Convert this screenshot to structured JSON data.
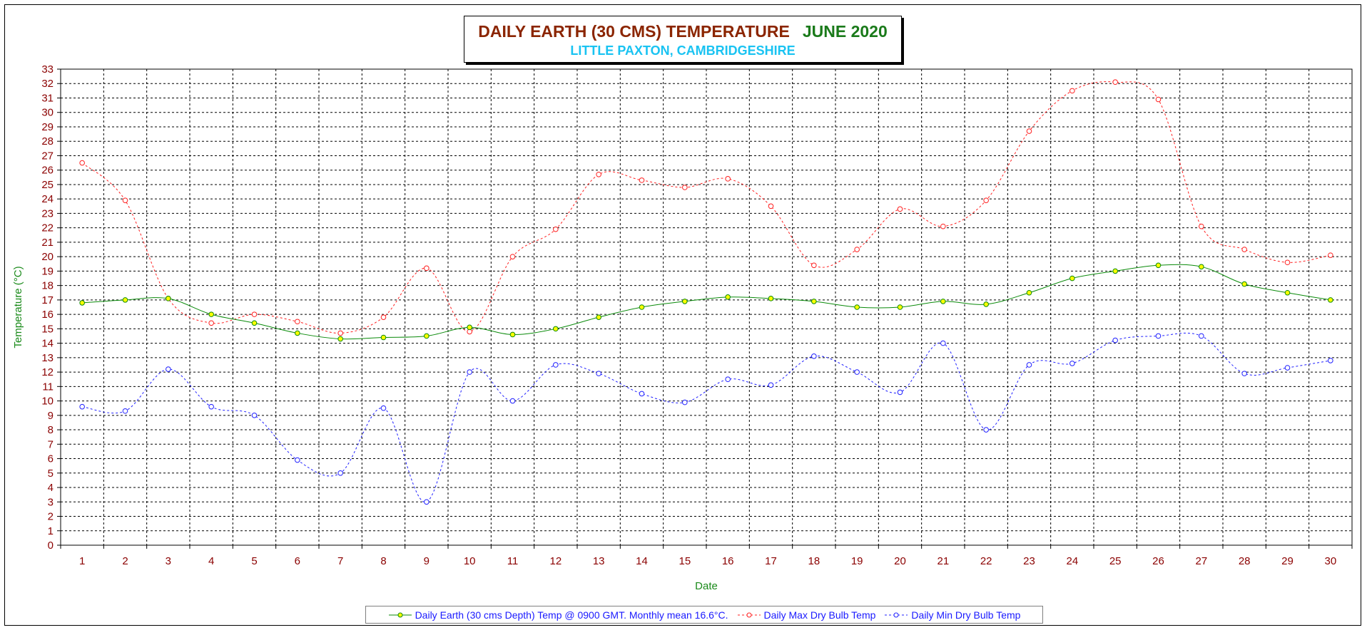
{
  "chart_data": {
    "type": "line",
    "title": "DAILY EARTH (30 CMS) TEMPERATURE",
    "title_month": "JUNE 2020",
    "subtitle": "LITTLE PAXTON, CAMBRIDGESHIRE",
    "xlabel": "Date",
    "ylabel": "Temperature (°C)",
    "x": [
      1,
      2,
      3,
      4,
      5,
      6,
      7,
      8,
      9,
      10,
      11,
      12,
      13,
      14,
      15,
      16,
      17,
      18,
      19,
      20,
      21,
      22,
      23,
      24,
      25,
      26,
      27,
      28,
      29,
      30
    ],
    "ylim": [
      0,
      33
    ],
    "yticks": [
      0,
      1,
      2,
      3,
      4,
      5,
      6,
      7,
      8,
      9,
      10,
      11,
      12,
      13,
      14,
      15,
      16,
      17,
      18,
      19,
      20,
      21,
      22,
      23,
      24,
      25,
      26,
      27,
      28,
      29,
      30,
      31,
      32,
      33
    ],
    "grid": true,
    "legend_position": "bottom",
    "series": [
      {
        "name": "Daily Earth (30 cms Depth) Temp @ 0900 GMT. Monthly mean 16.6°C.",
        "color": "#0a8a0a",
        "marker_fill": "#ffff00",
        "style": "solid",
        "values": [
          16.8,
          17.0,
          17.1,
          16.0,
          15.4,
          14.7,
          14.3,
          14.4,
          14.5,
          15.1,
          14.6,
          15.0,
          15.8,
          16.5,
          16.9,
          17.2,
          17.1,
          16.9,
          16.5,
          16.5,
          16.9,
          16.7,
          17.5,
          18.5,
          19.0,
          19.4,
          19.3,
          18.1,
          17.5,
          17.0
        ]
      },
      {
        "name": "Daily Max Dry Bulb Temp",
        "color": "#ff2020",
        "marker_fill": "#ffffff",
        "style": "dashed",
        "values": [
          26.5,
          23.9,
          17.1,
          15.4,
          16.0,
          15.5,
          14.7,
          15.8,
          19.2,
          14.8,
          20.0,
          21.9,
          25.7,
          25.3,
          24.8,
          25.4,
          23.5,
          19.4,
          20.5,
          23.3,
          22.1,
          23.9,
          28.7,
          31.5,
          32.1,
          30.9,
          22.1,
          20.5,
          19.6,
          20.1
        ]
      },
      {
        "name": "Daily Min Dry Bulb Temp",
        "color": "#2020ff",
        "marker_fill": "#ffffff",
        "style": "dashed",
        "values": [
          9.6,
          9.3,
          12.2,
          9.6,
          9.0,
          5.9,
          5.0,
          9.5,
          3.0,
          12.0,
          10.0,
          12.5,
          11.9,
          10.5,
          9.9,
          11.5,
          11.1,
          13.1,
          12.0,
          10.6,
          14.0,
          8.0,
          12.5,
          12.6,
          14.2,
          14.5,
          14.5,
          11.9,
          12.3,
          12.8
        ]
      }
    ]
  }
}
